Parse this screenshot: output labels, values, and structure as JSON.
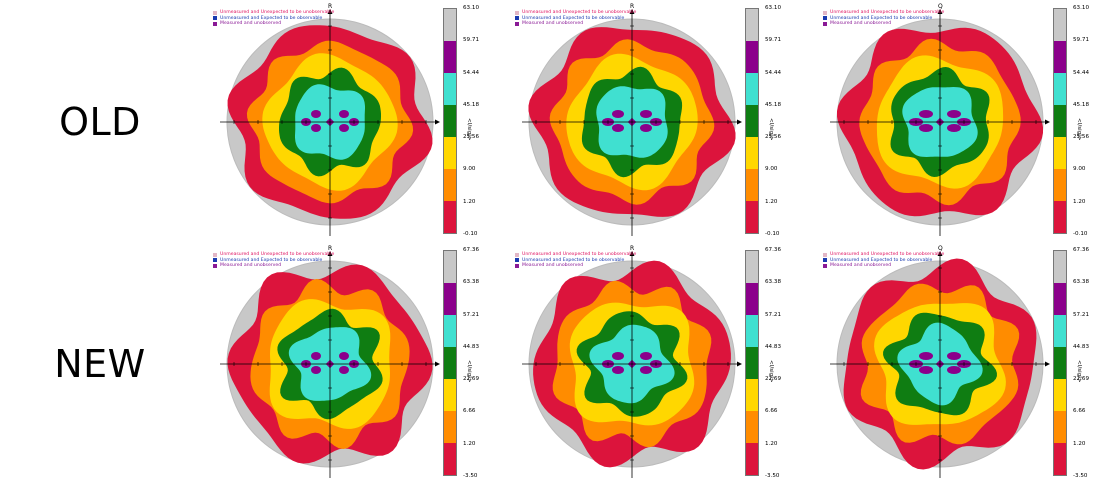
{
  "rows": [
    {
      "label": "OLD"
    },
    {
      "label": "NEW"
    }
  ],
  "legend": [
    {
      "text": "Unmeasured and Unexpected to be unobservable",
      "color": "#e2b7c6",
      "text_color": "#e0115f"
    },
    {
      "text": "Unmeasured and Expected to be observable",
      "color": "#1a3bb0",
      "text_color": "#1a3bb0"
    },
    {
      "text": "Measured and unobserved",
      "color": "#8a1a96",
      "text_color": "#8a1a96"
    }
  ],
  "colors": {
    "red": "#dc143c",
    "orange": "#ff8c00",
    "yellow": "#ffd700",
    "green": "#0f7d12",
    "teal": "#40e0d0",
    "purple": "#8b008b",
    "gray": "#c8c8c8"
  },
  "panels": [
    {
      "id": "old-1",
      "ticks": [
        "63.10",
        "59.71",
        "54.44",
        "45.18",
        "25.56",
        "9.00",
        "1.20",
        "-0.10"
      ],
      "x_axis": "Q",
      "y_axis": "R",
      "cb_title": "<I/sigI>"
    },
    {
      "id": "old-2",
      "ticks": [
        "63.10",
        "59.71",
        "54.44",
        "45.18",
        "25.56",
        "9.00",
        "1.20",
        "-0.10"
      ],
      "x_axis": "P",
      "y_axis": "R",
      "cb_title": "<I/sigI>"
    },
    {
      "id": "old-3",
      "ticks": [
        "63.10",
        "59.71",
        "54.44",
        "45.18",
        "25.56",
        "9.00",
        "1.20",
        "-0.10"
      ],
      "x_axis": "P",
      "y_axis": "Q",
      "cb_title": "<I/sigI>"
    },
    {
      "id": "new-1",
      "ticks": [
        "67.36",
        "63.38",
        "57.21",
        "44.83",
        "22.69",
        "6.66",
        "1.20",
        "-3.50"
      ],
      "x_axis": "Q",
      "y_axis": "R",
      "cb_title": "<I/sigI>"
    },
    {
      "id": "new-2",
      "ticks": [
        "67.36",
        "63.38",
        "57.21",
        "44.83",
        "22.69",
        "6.66",
        "1.20",
        "-3.50"
      ],
      "x_axis": "P",
      "y_axis": "R",
      "cb_title": "<I/sigI>"
    },
    {
      "id": "new-3",
      "ticks": [
        "67.36",
        "63.38",
        "57.21",
        "44.83",
        "22.69",
        "6.66",
        "1.20",
        "-3.50"
      ],
      "x_axis": "P",
      "y_axis": "Q",
      "cb_title": "<I/sigI>"
    }
  ]
}
